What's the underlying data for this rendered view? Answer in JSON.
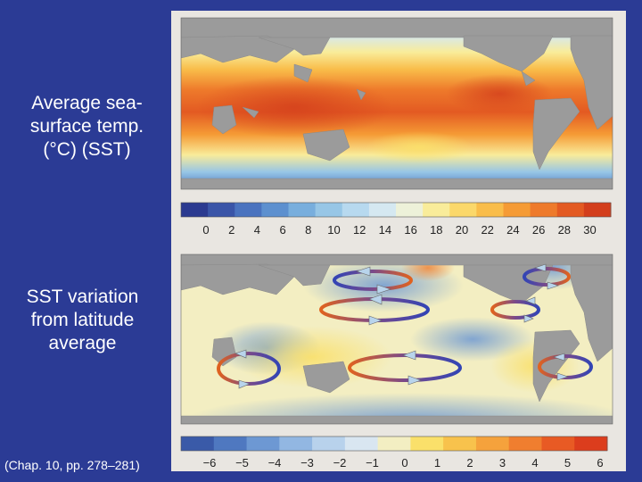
{
  "slide": {
    "label_sst": "Average sea-surface temp. (°C) (SST)",
    "label_variation": "SST variation from latitude average",
    "citation": "(Chap. 10, pp. 278–281)"
  },
  "colorbar_sst": {
    "ticks": [
      "0",
      "2",
      "4",
      "6",
      "8",
      "10",
      "12",
      "14",
      "16",
      "18",
      "20",
      "22",
      "24",
      "26",
      "28",
      "30"
    ],
    "colors": [
      "#2b3a90",
      "#3a55a8",
      "#4a73bf",
      "#5d90cf",
      "#78aedd",
      "#97c6e6",
      "#b7d9ef",
      "#d5e8f1",
      "#edf1d9",
      "#f9ec9a",
      "#fbd86a",
      "#f9bd4a",
      "#f59b35",
      "#ee7a2b",
      "#e35a22",
      "#d33e1c"
    ]
  },
  "colorbar_anomaly": {
    "ticks": [
      "−6",
      "−5",
      "−4",
      "−3",
      "−2",
      "−1",
      "0",
      "1",
      "2",
      "3",
      "4",
      "5",
      "6"
    ],
    "colors": [
      "#3a5aa8",
      "#4f78c0",
      "#6d98d3",
      "#92b7e2",
      "#b8d2ec",
      "#d9e6f1",
      "#f3eec2",
      "#fae06a",
      "#f8c24c",
      "#f5a23c",
      "#f07e2f",
      "#e85a24",
      "#dc3d1d"
    ]
  },
  "colors": {
    "slide_bg": "#2b3b95",
    "land": "#9b9b9b",
    "arrow_warm": "#d9501e",
    "arrow_cool": "#3a4fb0"
  }
}
